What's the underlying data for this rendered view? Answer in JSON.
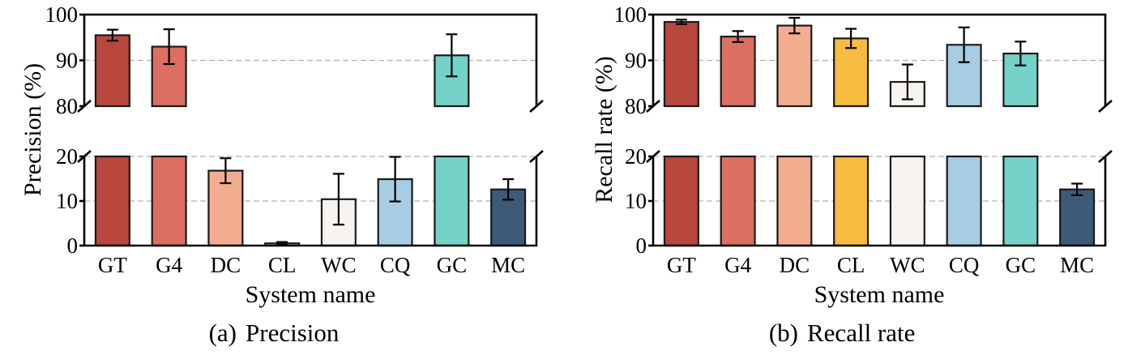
{
  "chart_data": [
    {
      "type": "bar",
      "caption_tag": "(a)",
      "caption_text": "Precision",
      "xlabel": "System name",
      "ylabel": "Precision (%)",
      "categories": [
        "GT",
        "G4",
        "DC",
        "CL",
        "WC",
        "CQ",
        "GC",
        "MC"
      ],
      "colors": [
        "#b8473d",
        "#dc6f61",
        "#f2ad8f",
        "#f7f4ef",
        "#f7f4ef",
        "#a7cde2",
        "#74d2c9",
        "#3d5a78"
      ],
      "values": [
        95.5,
        93.0,
        16.8,
        0.5,
        10.4,
        14.9,
        91.1,
        12.6
      ],
      "errors": [
        1.2,
        3.8,
        2.8,
        0.3,
        5.7,
        5.0,
        4.6,
        2.3
      ],
      "y_broken_axis": true,
      "y_segments": [
        [
          0,
          20
        ],
        [
          80,
          100
        ]
      ],
      "yticks_lower": [
        "0",
        "10",
        "20"
      ],
      "yticks_upper": [
        "80",
        "90",
        "100"
      ],
      "grid": "horizontal dashed"
    },
    {
      "type": "bar",
      "caption_tag": "(b)",
      "caption_text": "Recall rate",
      "xlabel": "System name",
      "ylabel": "Recall rate (%)",
      "categories": [
        "GT",
        "G4",
        "DC",
        "CL",
        "WC",
        "CQ",
        "GC",
        "MC"
      ],
      "colors": [
        "#b8473d",
        "#dc6f61",
        "#f2ad8f",
        "#f7bb3f",
        "#f7f4ef",
        "#a7cde2",
        "#74d2c9",
        "#3d5a78"
      ],
      "values": [
        98.4,
        95.2,
        97.6,
        94.8,
        85.3,
        93.4,
        91.5,
        12.6
      ],
      "errors": [
        0.5,
        1.2,
        1.7,
        2.1,
        3.8,
        3.8,
        2.6,
        1.3
      ],
      "y_broken_axis": true,
      "y_segments": [
        [
          0,
          20
        ],
        [
          80,
          100
        ]
      ],
      "yticks_lower": [
        "0",
        "10",
        "20"
      ],
      "yticks_upper": [
        "80",
        "90",
        "100"
      ],
      "grid": "horizontal dashed"
    }
  ]
}
